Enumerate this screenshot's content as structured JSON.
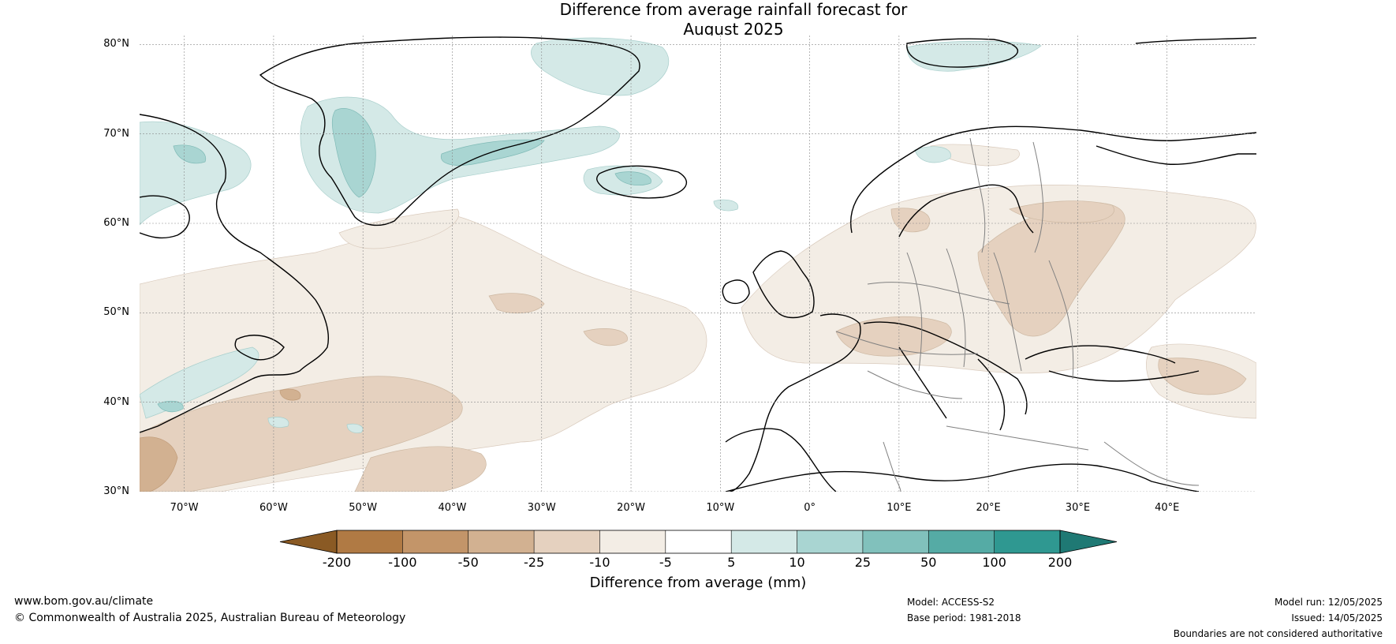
{
  "title": {
    "line1": "Difference from average rainfall forecast for",
    "line2": "August 2025"
  },
  "map": {
    "latitudes": [
      "80°N",
      "70°N",
      "60°N",
      "50°N",
      "40°N",
      "30°N"
    ],
    "longitudes": [
      "70°W",
      "60°W",
      "50°W",
      "40°W",
      "30°W",
      "20°W",
      "10°W",
      "0°",
      "10°E",
      "20°E",
      "30°E",
      "40°E"
    ],
    "lat_range": [
      30,
      81
    ],
    "lon_range": [
      -75,
      50
    ],
    "dry_color_light": "#f3ede5",
    "wet_color_light": "#d4e9e7"
  },
  "colorbar": {
    "ticks": [
      "-200",
      "-100",
      "-50",
      "-25",
      "-10",
      "-5",
      "5",
      "10",
      "25",
      "50",
      "100",
      "200"
    ],
    "colors": [
      "#8a5a24",
      "#b07a44",
      "#c39569",
      "#d2b191",
      "#e5d1bf",
      "#f3ede5",
      "#ffffff",
      "#d4e9e7",
      "#a9d5d2",
      "#81c1bc",
      "#55aba5",
      "#2f9891",
      "#1f7974"
    ],
    "label": "Difference from average (mm)"
  },
  "footer": {
    "website": "www.bom.gov.au/climate",
    "copyright": "© Commonwealth of Australia 2025, Australian Bureau of Meteorology",
    "model": "Model: ACCESS-S2",
    "base_period": "Base period: 1981-2018",
    "model_run": "Model run: 12/05/2025",
    "issued": "Issued: 14/05/2025",
    "disclaimer": "Boundaries are not considered authoritative"
  }
}
